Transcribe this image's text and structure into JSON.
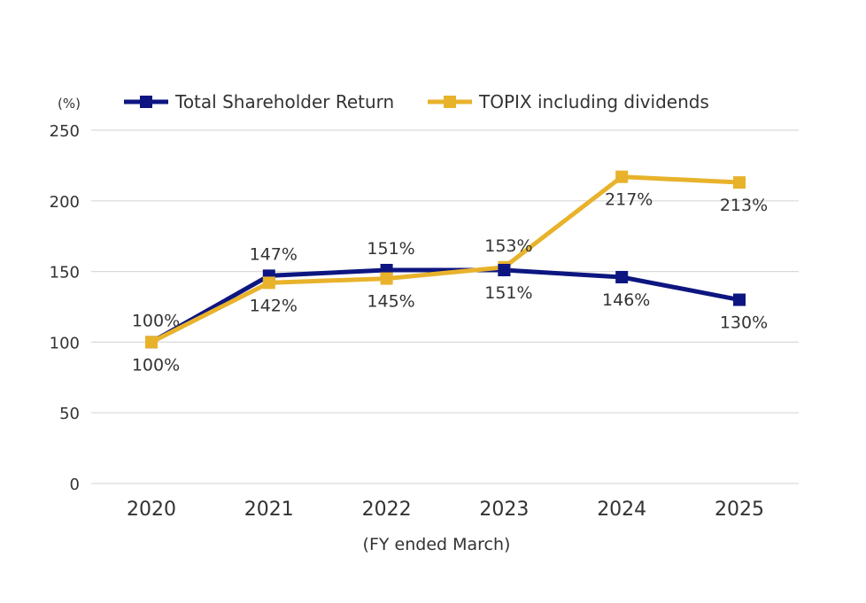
{
  "chart_data": {
    "type": "line",
    "title": "",
    "xlabel": "(FY ended March)",
    "ylabel": "(%)",
    "categories": [
      "2020",
      "2021",
      "2022",
      "2023",
      "2024",
      "2025"
    ],
    "ylim": [
      0,
      250
    ],
    "yticks": [
      0,
      50,
      100,
      150,
      200,
      250
    ],
    "grid": true,
    "legend_position": "top",
    "series": [
      {
        "name": "Total Shareholder Return",
        "color": "#0d1680",
        "values": [
          100,
          147,
          151,
          151,
          146,
          130
        ],
        "labels": [
          "100%",
          "147%",
          "151%",
          "151%",
          "146%",
          "130%"
        ],
        "label_side": [
          "above",
          "above",
          "above",
          "below",
          "below",
          "below"
        ]
      },
      {
        "name": "TOPIX including dividends",
        "color": "#e8b22b",
        "values": [
          100,
          142,
          145,
          153,
          217,
          213
        ],
        "labels": [
          "100%",
          "142%",
          "145%",
          "153%",
          "217%",
          "213%"
        ],
        "label_side": [
          "below",
          "below",
          "below",
          "above",
          "below",
          "below"
        ]
      }
    ]
  }
}
